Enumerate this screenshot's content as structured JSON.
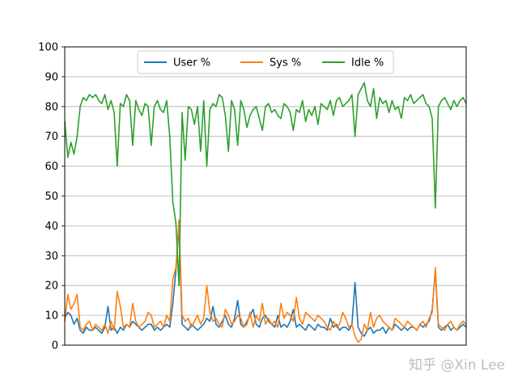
{
  "chart_data": {
    "type": "line",
    "title": "",
    "xlabel": "",
    "ylabel": "",
    "ylim": [
      0,
      100
    ],
    "yticks": [
      0,
      10,
      20,
      30,
      40,
      50,
      60,
      70,
      80,
      90,
      100
    ],
    "xticks": [],
    "grid": "horizontal",
    "legend_position": "upper center",
    "series": [
      {
        "name": "User %",
        "color": "#1f77b4",
        "values": [
          9,
          11,
          10,
          7,
          9,
          5,
          4,
          6,
          5,
          5,
          6,
          5,
          4,
          6,
          13,
          5,
          6,
          4,
          6,
          5,
          7,
          6,
          8,
          7,
          6,
          5,
          6,
          7,
          7,
          5,
          6,
          5,
          6,
          7,
          6,
          14,
          25,
          40,
          7,
          6,
          5,
          7,
          6,
          5,
          6,
          7,
          9,
          8,
          13,
          7,
          6,
          8,
          10,
          7,
          6,
          9,
          15,
          7,
          6,
          8,
          10,
          12,
          7,
          6,
          9,
          10,
          8,
          7,
          6,
          10,
          6,
          7,
          6,
          8,
          12,
          6,
          7,
          6,
          5,
          7,
          6,
          5,
          7,
          6,
          6,
          5,
          9,
          6,
          7,
          5,
          6,
          6,
          5,
          7,
          21,
          6,
          4,
          3,
          5,
          6,
          4,
          5,
          5,
          6,
          4,
          6,
          5,
          7,
          6,
          5,
          6,
          5,
          6,
          6,
          5,
          7,
          6,
          7,
          8,
          12,
          25,
          6,
          5,
          6,
          7,
          5,
          6,
          5,
          6,
          7,
          6
        ]
      },
      {
        "name": "Sys %",
        "color": "#ff7f0e",
        "values": [
          8,
          17,
          12,
          14,
          17,
          6,
          5,
          7,
          8,
          5,
          7,
          6,
          5,
          7,
          4,
          8,
          5,
          18,
          13,
          6,
          7,
          6,
          14,
          8,
          6,
          7,
          8,
          11,
          10,
          6,
          7,
          8,
          6,
          10,
          8,
          22,
          26,
          42,
          10,
          8,
          9,
          6,
          8,
          10,
          7,
          9,
          20,
          11,
          8,
          9,
          7,
          6,
          12,
          10,
          7,
          8,
          10,
          9,
          6,
          7,
          11,
          6,
          10,
          8,
          14,
          7,
          9,
          7,
          8,
          6,
          14,
          9,
          11,
          10,
          8,
          16,
          9,
          7,
          11,
          10,
          9,
          8,
          10,
          9,
          8,
          6,
          5,
          8,
          6,
          7,
          11,
          9,
          6,
          7,
          3,
          1,
          2,
          7,
          5,
          11,
          6,
          9,
          10,
          8,
          7,
          6,
          5,
          9,
          8,
          7,
          6,
          8,
          7,
          6,
          5,
          7,
          8,
          6,
          9,
          11,
          26,
          7,
          6,
          5,
          7,
          8,
          6,
          5,
          7,
          8,
          7
        ]
      },
      {
        "name": "Idle %",
        "color": "#2ca02c",
        "values": [
          75,
          63,
          68,
          64,
          70,
          80,
          83,
          82,
          84,
          83,
          84,
          82,
          81,
          84,
          79,
          82,
          78,
          60,
          81,
          80,
          84,
          82,
          67,
          82,
          79,
          77,
          81,
          80,
          67,
          80,
          82,
          79,
          78,
          82,
          70,
          48,
          41,
          20,
          78,
          62,
          80,
          79,
          74,
          80,
          65,
          82,
          60,
          79,
          81,
          80,
          84,
          83,
          77,
          65,
          82,
          79,
          67,
          82,
          79,
          73,
          77,
          79,
          80,
          76,
          72,
          80,
          81,
          78,
          79,
          77,
          76,
          81,
          80,
          78,
          72,
          79,
          78,
          82,
          75,
          79,
          77,
          80,
          74,
          81,
          80,
          79,
          82,
          77,
          82,
          83,
          80,
          81,
          82,
          84,
          70,
          84,
          86,
          88,
          82,
          80,
          86,
          76,
          83,
          81,
          82,
          78,
          82,
          79,
          80,
          76,
          83,
          82,
          84,
          81,
          82,
          83,
          84,
          81,
          80,
          76,
          46,
          80,
          82,
          83,
          81,
          79,
          82,
          80,
          82,
          83,
          81
        ]
      }
    ]
  },
  "watermark": "知乎 @Xin Lee"
}
